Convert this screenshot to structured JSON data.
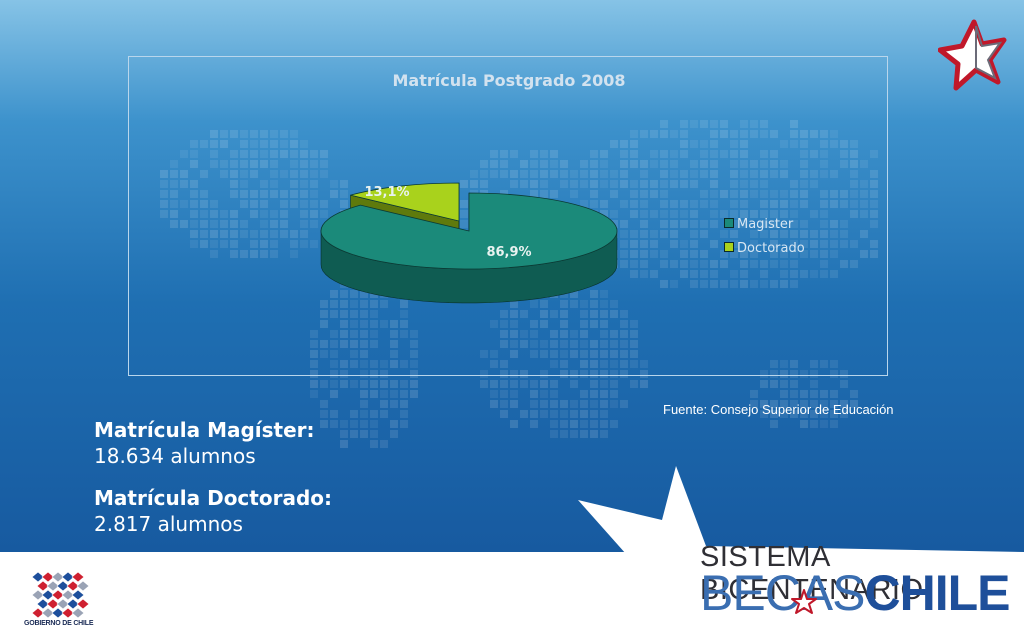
{
  "chart_data": {
    "type": "pie",
    "title": "Matrícula Postgrado 2008",
    "categories": [
      "Magister",
      "Doctorado"
    ],
    "values": [
      86.9,
      13.1
    ],
    "labels": [
      "86,9%",
      "13,1%"
    ],
    "colors": [
      "#1b8a7a",
      "#a9d21c"
    ],
    "legend_position": "right",
    "style": "3d-exploded"
  },
  "source": "Fuente: Consejo Superior de Educación",
  "stats": [
    {
      "label": "Matrícula Magíster:",
      "value": "18.634 alumnos"
    },
    {
      "label": "Matrícula Doctorado:",
      "value": "2.817 alumnos"
    }
  ],
  "branding": {
    "line1": "SISTEMA BICENTENARIO",
    "line2_a": "BECAS",
    "line2_b": "CHILE",
    "gov": "GOBIERNO DE CHILE"
  },
  "icons": [
    "star-logo-icon",
    "gobierno-de-chile-logo"
  ]
}
